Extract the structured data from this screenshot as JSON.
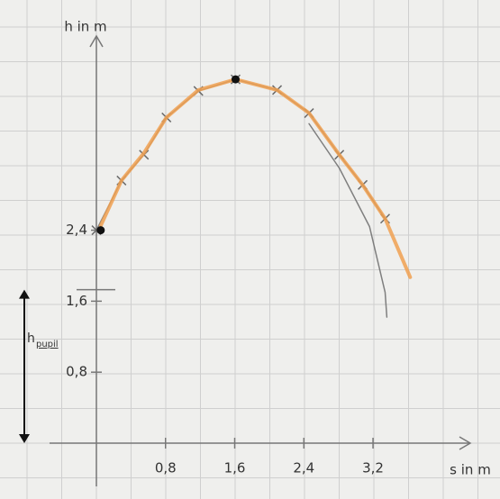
{
  "chart_data": {
    "type": "line",
    "x_label": "s in m",
    "y_label": "h in m",
    "xlim": [
      0,
      4.2
    ],
    "ylim": [
      0,
      4.7
    ],
    "xticks": [
      {
        "value": 0.8,
        "label": "0,8"
      },
      {
        "value": 1.6,
        "label": "1,6"
      },
      {
        "value": 2.4,
        "label": "2,4"
      },
      {
        "value": 3.2,
        "label": "3,2"
      }
    ],
    "yticks": [
      {
        "value": 0.8,
        "label": "0,8"
      },
      {
        "value": 1.6,
        "label": "1,6"
      },
      {
        "value": 2.4,
        "label": "2,4"
      }
    ],
    "annotation": {
      "text": "h",
      "subscript": "pupil",
      "value": 1.73
    },
    "series": [
      {
        "color": "#6b6b6b",
        "marker": "x",
        "x": [
          0,
          0.29,
          0.55,
          0.81,
          1.18,
          1.61,
          2.09,
          2.46,
          2.81,
          3.08,
          3.34
        ],
        "values": [
          2.4,
          2.96,
          3.25,
          3.67,
          3.97,
          4.1,
          3.98,
          3.72,
          3.25,
          2.91,
          2.53
        ]
      },
      {
        "color": "#f0a050",
        "marker": "none",
        "x": [
          0.05,
          0.29,
          0.55,
          0.81,
          1.18,
          1.61,
          2.09,
          2.46,
          2.81,
          3.08,
          3.34,
          3.63
        ],
        "values": [
          2.45,
          2.96,
          3.27,
          3.67,
          3.98,
          4.1,
          3.98,
          3.72,
          3.25,
          2.91,
          2.53,
          1.87
        ]
      },
      {
        "color": "#6b6b6b",
        "marker": "none",
        "x": [
          2.46,
          2.81,
          3.16,
          3.34,
          3.36
        ],
        "values": [
          3.6,
          3.1,
          2.44,
          1.7,
          1.42
        ]
      },
      {
        "color": "#111111",
        "marker": "dot",
        "x": [
          0.05,
          1.61
        ],
        "values": [
          2.4,
          4.1
        ]
      }
    ]
  }
}
